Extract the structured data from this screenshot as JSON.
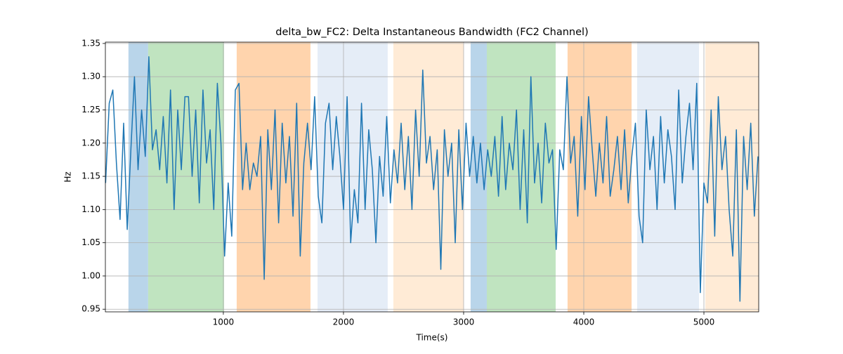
{
  "chart_data": {
    "type": "line",
    "title": "delta_bw_FC2: Delta Instantaneous Bandwidth (FC2 Channel)",
    "x_label": "Time(s)",
    "y_label": "Hz",
    "x": [
      20,
      50,
      80,
      110,
      140,
      170,
      200,
      230,
      260,
      290,
      320,
      350,
      380,
      410,
      440,
      470,
      500,
      530,
      560,
      590,
      620,
      650,
      680,
      710,
      740,
      770,
      800,
      830,
      860,
      890,
      920,
      950,
      980,
      1010,
      1040,
      1070,
      1100,
      1130,
      1160,
      1190,
      1220,
      1250,
      1280,
      1310,
      1340,
      1370,
      1400,
      1430,
      1460,
      1490,
      1520,
      1550,
      1580,
      1610,
      1640,
      1670,
      1700,
      1730,
      1760,
      1790,
      1820,
      1850,
      1880,
      1910,
      1940,
      1970,
      2000,
      2030,
      2060,
      2090,
      2120,
      2150,
      2180,
      2210,
      2240,
      2270,
      2300,
      2330,
      2360,
      2390,
      2420,
      2450,
      2480,
      2510,
      2540,
      2570,
      2600,
      2630,
      2660,
      2690,
      2720,
      2750,
      2780,
      2810,
      2840,
      2870,
      2900,
      2930,
      2960,
      2990,
      3020,
      3050,
      3080,
      3110,
      3140,
      3170,
      3200,
      3230,
      3260,
      3290,
      3320,
      3350,
      3380,
      3410,
      3440,
      3470,
      3500,
      3530,
      3560,
      3590,
      3620,
      3650,
      3680,
      3710,
      3740,
      3770,
      3800,
      3830,
      3860,
      3890,
      3920,
      3950,
      3980,
      4010,
      4040,
      4070,
      4100,
      4130,
      4160,
      4190,
      4220,
      4250,
      4280,
      4310,
      4340,
      4370,
      4400,
      4430,
      4460,
      4490,
      4520,
      4550,
      4580,
      4610,
      4640,
      4670,
      4700,
      4730,
      4760,
      4790,
      4820,
      4850,
      4880,
      4910,
      4940,
      4970,
      5000,
      5030,
      5060,
      5090,
      5120,
      5150,
      5180,
      5210,
      5240,
      5270,
      5300,
      5330,
      5360,
      5390,
      5420,
      5450
    ],
    "series": [
      {
        "color": "#1f77b4",
        "values": [
          1.14,
          1.26,
          1.28,
          1.17,
          1.085,
          1.23,
          1.07,
          1.19,
          1.3,
          1.16,
          1.25,
          1.18,
          1.33,
          1.19,
          1.22,
          1.16,
          1.24,
          1.14,
          1.28,
          1.1,
          1.25,
          1.16,
          1.27,
          1.27,
          1.15,
          1.25,
          1.11,
          1.28,
          1.17,
          1.22,
          1.1,
          1.29,
          1.2,
          1.03,
          1.14,
          1.06,
          1.28,
          1.29,
          1.13,
          1.2,
          1.13,
          1.17,
          1.15,
          1.21,
          0.995,
          1.22,
          1.13,
          1.25,
          1.08,
          1.23,
          1.14,
          1.21,
          1.09,
          1.26,
          1.03,
          1.17,
          1.23,
          1.16,
          1.27,
          1.12,
          1.08,
          1.23,
          1.26,
          1.16,
          1.24,
          1.18,
          1.1,
          1.27,
          1.05,
          1.13,
          1.08,
          1.26,
          1.1,
          1.22,
          1.16,
          1.05,
          1.18,
          1.12,
          1.24,
          1.11,
          1.19,
          1.14,
          1.23,
          1.13,
          1.21,
          1.1,
          1.25,
          1.15,
          1.31,
          1.17,
          1.21,
          1.13,
          1.19,
          1.01,
          1.22,
          1.15,
          1.2,
          1.05,
          1.22,
          1.1,
          1.23,
          1.15,
          1.21,
          1.14,
          1.2,
          1.13,
          1.19,
          1.15,
          1.21,
          1.12,
          1.24,
          1.13,
          1.2,
          1.16,
          1.25,
          1.1,
          1.22,
          1.08,
          1.3,
          1.14,
          1.2,
          1.11,
          1.23,
          1.17,
          1.19,
          1.04,
          1.19,
          1.16,
          1.3,
          1.17,
          1.21,
          1.09,
          1.24,
          1.13,
          1.27,
          1.19,
          1.12,
          1.2,
          1.14,
          1.24,
          1.12,
          1.16,
          1.21,
          1.13,
          1.22,
          1.11,
          1.18,
          1.23,
          1.09,
          1.05,
          1.25,
          1.16,
          1.21,
          1.1,
          1.24,
          1.14,
          1.22,
          1.18,
          1.1,
          1.28,
          1.14,
          1.21,
          1.26,
          1.16,
          1.29,
          0.975,
          1.14,
          1.11,
          1.25,
          1.06,
          1.27,
          1.16,
          1.21,
          1.1,
          1.03,
          1.22,
          0.962,
          1.21,
          1.13,
          1.23,
          1.09,
          1.18
        ]
      }
    ],
    "spans": [
      {
        "x": [
          210,
          374
        ],
        "color": "#b9d5ea"
      },
      {
        "x": [
          374,
          1006
        ],
        "color": "#c0e4c0"
      },
      {
        "x": [
          1111,
          1725
        ],
        "color": "#ffd4ad"
      },
      {
        "x": [
          1784,
          2368
        ],
        "color": "#e5edf7"
      },
      {
        "x": [
          2415,
          3000
        ],
        "color": "#ffebd6"
      },
      {
        "x": [
          3058,
          3193
        ],
        "color": "#b9d5ea"
      },
      {
        "x": [
          3193,
          3766
        ],
        "color": "#c0e4c0"
      },
      {
        "x": [
          3865,
          4398
        ],
        "color": "#ffd4ad"
      },
      {
        "x": [
          4444,
          4959
        ],
        "color": "#e5edf7"
      },
      {
        "x": [
          5012,
          5456
        ],
        "color": "#ffebd6"
      }
    ],
    "xlim": [
      18,
      5456
    ],
    "ylim": [
      0.946,
      1.352
    ],
    "xticks": [
      1000,
      2000,
      3000,
      4000,
      5000
    ],
    "yticks": [
      0.95,
      {
        "value": 1.0,
        "label": "1.00"
      },
      1.05,
      {
        "value": 1.1,
        "label": "1.10"
      },
      1.15,
      {
        "value": 1.2,
        "label": "1.20"
      },
      1.25,
      {
        "value": 1.3,
        "label": "1.30"
      },
      1.35
    ],
    "grid": true
  }
}
